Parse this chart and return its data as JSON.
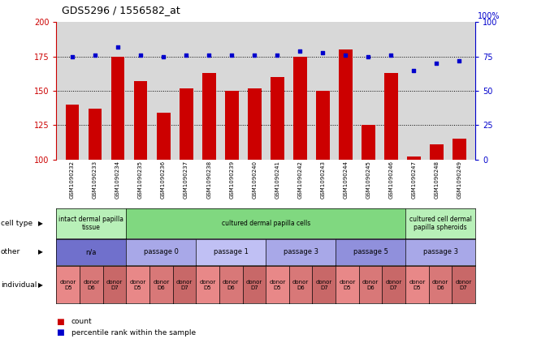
{
  "title": "GDS5296 / 1556582_at",
  "samples": [
    "GSM1090232",
    "GSM1090233",
    "GSM1090234",
    "GSM1090235",
    "GSM1090236",
    "GSM1090237",
    "GSM1090238",
    "GSM1090239",
    "GSM1090240",
    "GSM1090241",
    "GSM1090242",
    "GSM1090243",
    "GSM1090244",
    "GSM1090245",
    "GSM1090246",
    "GSM1090247",
    "GSM1090248",
    "GSM1090249"
  ],
  "counts": [
    140,
    137,
    175,
    157,
    134,
    152,
    163,
    150,
    152,
    160,
    175,
    150,
    180,
    125,
    163,
    102,
    111,
    115
  ],
  "percentiles": [
    75,
    76,
    82,
    76,
    75,
    76,
    76,
    76,
    76,
    76,
    79,
    78,
    76,
    75,
    76,
    65,
    70,
    72
  ],
  "bar_color": "#cc0000",
  "dot_color": "#0000cc",
  "ylim_left": [
    100,
    200
  ],
  "ylim_right": [
    0,
    100
  ],
  "yticks_left": [
    100,
    125,
    150,
    175,
    200
  ],
  "yticks_right": [
    0,
    25,
    50,
    75,
    100
  ],
  "hlines": [
    125,
    150,
    175
  ],
  "cell_type_groups": [
    {
      "label": "intact dermal papilla\ntissue",
      "start": 0,
      "end": 3,
      "color": "#b8f0b8"
    },
    {
      "label": "cultured dermal papilla cells",
      "start": 3,
      "end": 15,
      "color": "#80d880"
    },
    {
      "label": "cultured cell dermal\npapilla spheroids",
      "start": 15,
      "end": 18,
      "color": "#b8f0b8"
    }
  ],
  "other_groups": [
    {
      "label": "n/a",
      "start": 0,
      "end": 3,
      "color": "#7070cc"
    },
    {
      "label": "passage 0",
      "start": 3,
      "end": 6,
      "color": "#a8a8e8"
    },
    {
      "label": "passage 1",
      "start": 6,
      "end": 9,
      "color": "#c0c0f4"
    },
    {
      "label": "passage 3",
      "start": 9,
      "end": 12,
      "color": "#a8a8e8"
    },
    {
      "label": "passage 5",
      "start": 12,
      "end": 15,
      "color": "#9090dc"
    },
    {
      "label": "passage 3",
      "start": 15,
      "end": 18,
      "color": "#a8a8e8"
    }
  ],
  "individual_groups": [
    {
      "label": "donor\nD5",
      "start": 0,
      "end": 1,
      "color": "#e88888"
    },
    {
      "label": "donor\nD6",
      "start": 1,
      "end": 2,
      "color": "#d87878"
    },
    {
      "label": "donor\nD7",
      "start": 2,
      "end": 3,
      "color": "#c86868"
    },
    {
      "label": "donor\nD5",
      "start": 3,
      "end": 4,
      "color": "#e88888"
    },
    {
      "label": "donor\nD6",
      "start": 4,
      "end": 5,
      "color": "#d87878"
    },
    {
      "label": "donor\nD7",
      "start": 5,
      "end": 6,
      "color": "#c86868"
    },
    {
      "label": "donor\nD5",
      "start": 6,
      "end": 7,
      "color": "#e88888"
    },
    {
      "label": "donor\nD6",
      "start": 7,
      "end": 8,
      "color": "#d87878"
    },
    {
      "label": "donor\nD7",
      "start": 8,
      "end": 9,
      "color": "#c86868"
    },
    {
      "label": "donor\nD5",
      "start": 9,
      "end": 10,
      "color": "#e88888"
    },
    {
      "label": "donor\nD6",
      "start": 10,
      "end": 11,
      "color": "#d87878"
    },
    {
      "label": "donor\nD7",
      "start": 11,
      "end": 12,
      "color": "#c86868"
    },
    {
      "label": "donor\nD5",
      "start": 12,
      "end": 13,
      "color": "#e88888"
    },
    {
      "label": "donor\nD6",
      "start": 13,
      "end": 14,
      "color": "#d87878"
    },
    {
      "label": "donor\nD7",
      "start": 14,
      "end": 15,
      "color": "#c86868"
    },
    {
      "label": "donor\nD5",
      "start": 15,
      "end": 16,
      "color": "#e88888"
    },
    {
      "label": "donor\nD6",
      "start": 16,
      "end": 17,
      "color": "#d87878"
    },
    {
      "label": "donor\nD7",
      "start": 17,
      "end": 18,
      "color": "#c86868"
    }
  ],
  "row_labels": [
    "cell type",
    "other",
    "individual"
  ],
  "legend_items": [
    {
      "label": "count",
      "color": "#cc0000"
    },
    {
      "label": "percentile rank within the sample",
      "color": "#0000cc"
    }
  ],
  "background_color": "#ffffff",
  "plot_bg_color": "#d8d8d8",
  "xticklabel_bg": "#c8c8c8"
}
